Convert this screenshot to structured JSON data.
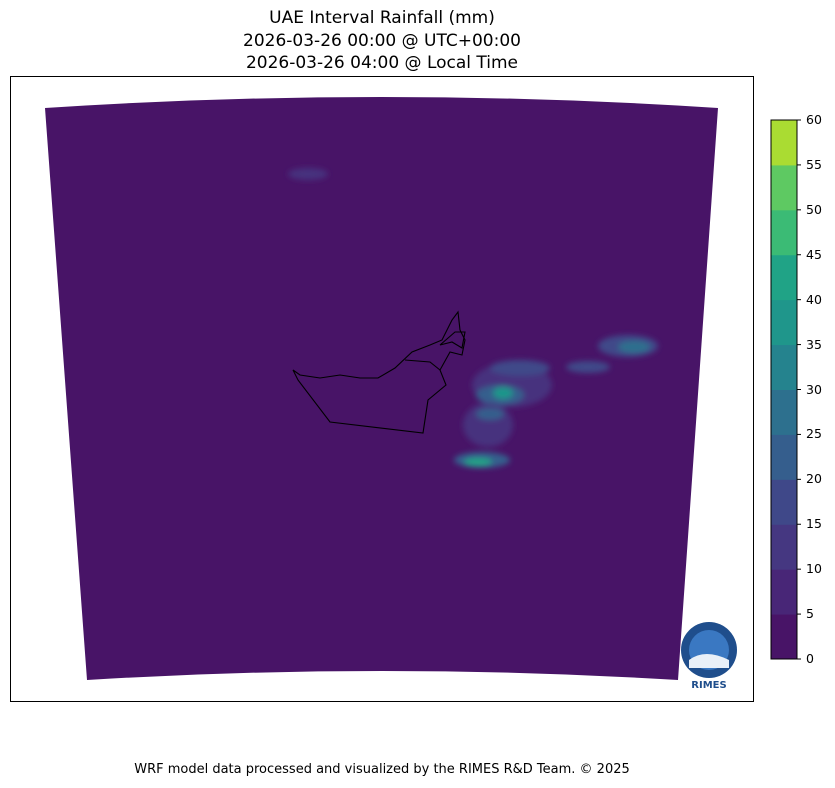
{
  "title": {
    "line1": "UAE Interval Rainfall (mm)",
    "line2": "2026-03-26 00:00 @ UTC+00:00",
    "line3": "2026-03-26 04:00 @ Local Time"
  },
  "colorbar": {
    "ticks": [
      "0",
      "5",
      "10",
      "15",
      "20",
      "25",
      "30",
      "35",
      "40",
      "45",
      "50",
      "55",
      "60"
    ],
    "colors": [
      "#481467",
      "#482677",
      "#453781",
      "#3f4889",
      "#355e8d",
      "#2d708e",
      "#25838e",
      "#1f968b",
      "#20a386",
      "#3bbb75",
      "#5ec962",
      "#aadc32",
      "#e2e418"
    ]
  },
  "map": {
    "background_color": "#481467",
    "boundary_color": "#000000"
  },
  "logo": {
    "text": "RIMES"
  },
  "footer": "WRF model data processed and visualized by the RIMES R&D Team. © 2025"
}
